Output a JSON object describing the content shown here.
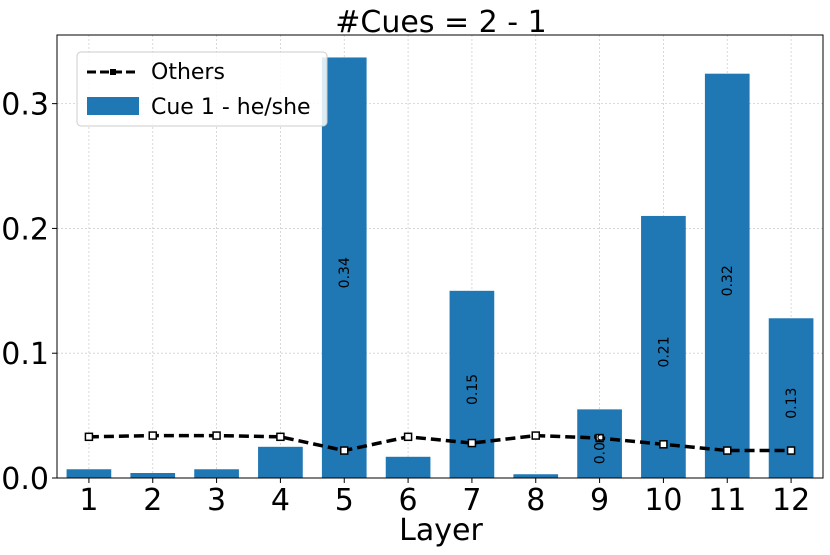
{
  "chart_data": {
    "type": "bar",
    "title": "#Cues = 2 - 1",
    "xlabel": "Layer",
    "ylabel": "",
    "categories": [
      "1",
      "2",
      "3",
      "4",
      "5",
      "6",
      "7",
      "8",
      "9",
      "10",
      "11",
      "12"
    ],
    "ylim": [
      0,
      0.355
    ],
    "yticks": [
      0.0,
      0.1,
      0.2,
      0.3
    ],
    "ytick_labels": [
      "0.0",
      "0.1",
      "0.2",
      "0.3"
    ],
    "grid": true,
    "legend_position": "top-left",
    "series": [
      {
        "name": "Cue 1 - he/she",
        "kind": "bar",
        "color": "#1f77b4",
        "values": [
          0.007,
          0.004,
          0.007,
          0.025,
          0.337,
          0.017,
          0.15,
          0.003,
          0.055,
          0.21,
          0.324,
          0.128
        ],
        "data_labels": [
          "",
          "",
          "",
          "",
          "0.34",
          "",
          "0.15",
          "",
          "0.06",
          "0.21",
          "0.32",
          "0.13"
        ]
      },
      {
        "name": "Others",
        "kind": "line",
        "color": "#000000",
        "style": "dashed-with-square-markers",
        "values": [
          0.033,
          0.034,
          0.034,
          0.033,
          0.022,
          0.033,
          0.028,
          0.034,
          0.032,
          0.027,
          0.022,
          0.022
        ]
      }
    ]
  }
}
